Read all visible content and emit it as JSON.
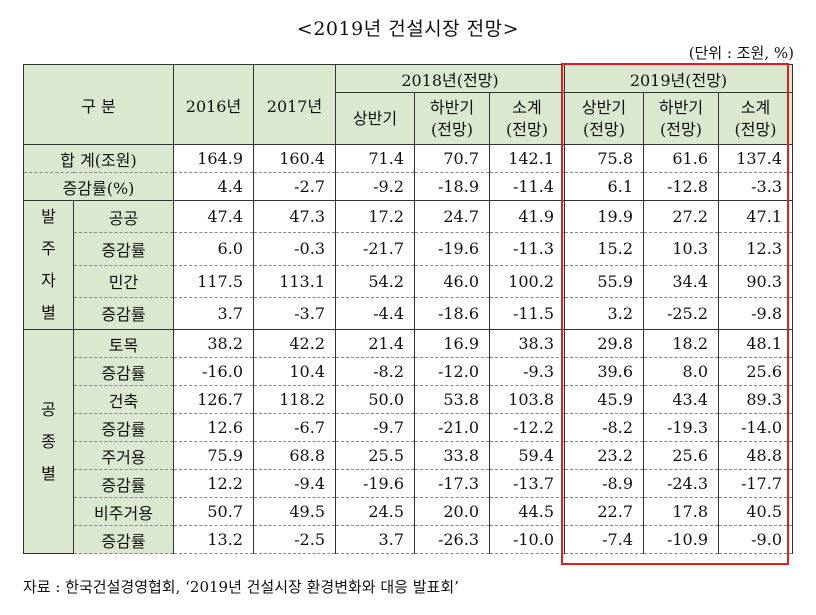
{
  "title": "<2019년 건설시장 전망>",
  "unit": "(단위 : 조원, %)",
  "header": {
    "category": "구 분",
    "y2016": "2016년",
    "y2017": "2017년",
    "g2018": "2018년(전망)",
    "g2019": "2019년(전망)",
    "h1": "상반기",
    "h2_line1": "하반기",
    "h2_line2": "(전망)",
    "sub_line1": "소계",
    "sub_line2": "(전망)",
    "h1_2019_line1": "상반기",
    "h1_2019_line2": "(전망)",
    "h2_2019_line1": "하반기",
    "h2_2019_line2": "(전망)",
    "sub2019_line1": "소계",
    "sub2019_line2": "(전망)"
  },
  "groups": {
    "orderer": [
      "발",
      "주",
      "자",
      "별"
    ],
    "worktype": [
      "공",
      "종",
      "별"
    ]
  },
  "rows": [
    {
      "label": "합 계(조원)",
      "values": [
        "164.9",
        "160.4",
        "71.4",
        "70.7",
        "142.1",
        "75.8",
        "61.6",
        "137.4"
      ]
    },
    {
      "label": "증감률(%)",
      "values": [
        "4.4",
        "-2.7",
        "-9.2",
        "-18.9",
        "-11.4",
        "6.1",
        "-12.8",
        "-3.3"
      ]
    },
    {
      "label": "공공",
      "values": [
        "47.4",
        "47.3",
        "17.2",
        "24.7",
        "41.9",
        "19.9",
        "27.2",
        "47.1"
      ]
    },
    {
      "label": "증감률",
      "values": [
        "6.0",
        "-0.3",
        "-21.7",
        "-19.6",
        "-11.3",
        "15.2",
        "10.3",
        "12.3"
      ]
    },
    {
      "label": "민간",
      "values": [
        "117.5",
        "113.1",
        "54.2",
        "46.0",
        "100.2",
        "55.9",
        "34.4",
        "90.3"
      ]
    },
    {
      "label": "증감률",
      "values": [
        "3.7",
        "-3.7",
        "-4.4",
        "-18.6",
        "-11.5",
        "3.2",
        "-25.2",
        "-9.8"
      ]
    },
    {
      "label": "토목",
      "values": [
        "38.2",
        "42.2",
        "21.4",
        "16.9",
        "38.3",
        "29.8",
        "18.2",
        "48.1"
      ]
    },
    {
      "label": "증감률",
      "values": [
        "-16.0",
        "10.4",
        "-8.2",
        "-12.0",
        "-9.3",
        "39.6",
        "8.0",
        "25.6"
      ]
    },
    {
      "label": "건축",
      "values": [
        "126.7",
        "118.2",
        "50.0",
        "53.8",
        "103.8",
        "45.9",
        "43.4",
        "89.3"
      ]
    },
    {
      "label": "증감률",
      "values": [
        "12.6",
        "-6.7",
        "-9.7",
        "-21.0",
        "-12.2",
        "-8.2",
        "-19.3",
        "-14.0"
      ]
    },
    {
      "label": "주거용",
      "values": [
        "75.9",
        "68.8",
        "25.5",
        "33.8",
        "59.4",
        "23.2",
        "25.6",
        "48.8"
      ]
    },
    {
      "label": "증감률",
      "values": [
        "12.2",
        "-9.4",
        "-19.6",
        "-17.3",
        "-13.7",
        "-8.9",
        "-24.3",
        "-17.7"
      ]
    },
    {
      "label": "비주거용",
      "values": [
        "50.7",
        "49.5",
        "24.5",
        "20.0",
        "44.5",
        "22.7",
        "17.8",
        "40.5"
      ]
    },
    {
      "label": "증감률",
      "values": [
        "13.2",
        "-2.5",
        "3.7",
        "-26.3",
        "-10.0",
        "-7.4",
        "-10.9",
        "-9.0"
      ]
    }
  ],
  "source": "자료 : 한국건설경영협회, ‘2019년 건설시장 환경변화와 대응 발표회’"
}
